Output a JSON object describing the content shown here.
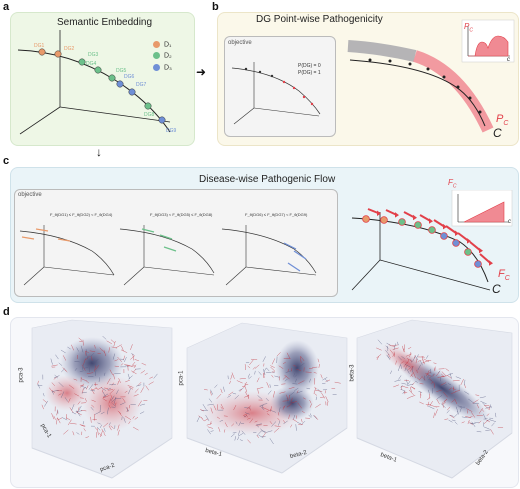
{
  "panel_a": {
    "letter": "a",
    "title": "Semantic Embedding",
    "legend": [
      {
        "label": "D₁",
        "color": "#e89a6b"
      },
      {
        "label": "D₂",
        "color": "#6cc08a"
      },
      {
        "label": "D₃",
        "color": "#6f8fd6"
      }
    ],
    "nodes": [
      {
        "label": "DG1",
        "group": 0
      },
      {
        "label": "DG2",
        "group": 0
      },
      {
        "label": "DG3",
        "group": 1
      },
      {
        "label": "DG4",
        "group": 1
      },
      {
        "label": "DG5",
        "group": 1
      },
      {
        "label": "DG6",
        "group": 2
      },
      {
        "label": "DG7",
        "group": 2
      },
      {
        "label": "DG8",
        "group": 1
      },
      {
        "label": "DG9",
        "group": 2
      }
    ]
  },
  "panel_b": {
    "letter": "b",
    "title": "DG Point-wise Pathogenicity",
    "objective_label": "objective",
    "eq1": "P(DG) = 0",
    "eq2": "P(DG) = 1",
    "curve_label": "C",
    "pc_label": "P",
    "pc_sub": "C",
    "inset_label": "P",
    "inset_sub": "C",
    "inset_axis": "c"
  },
  "panel_c": {
    "letter": "c",
    "title": "Disease-wise Pathogenic Flow",
    "objective_label": "objective",
    "ineq1": "F_θ(DG1) ≤ F_θ(DG2) < F_θ(DG4)",
    "ineq2": "F_θ(DG3) < F_θ(DG5) ≤ F_θ(DG8)",
    "ineq3": "F_θ(DG6) ≤ F_θ(DG7) < F_θ(DG9)",
    "curve_label": "C",
    "fc_label": "F",
    "fc_sub": "C",
    "inset_label": "F",
    "inset_sub": "C",
    "inset_axis": "c"
  },
  "panel_d": {
    "letter": "d",
    "plots": [
      {
        "axis_v": "pca-3",
        "axis_l": "pca-1",
        "axis_r": "pca-2"
      },
      {
        "axis_v": "pca-1",
        "axis_l": "beta-1",
        "axis_r": "beta-2"
      },
      {
        "axis_v": "beta-3",
        "axis_l": "beta-1",
        "axis_r": "beta-2"
      }
    ]
  },
  "arrow_right": "➜",
  "arrow_down": "↓",
  "colors": {
    "green_bg": "#eef7e6",
    "yellow_bg": "#fbf8ea",
    "blue_bg": "#eaf4f8",
    "obj_bg": "#f4f4f4",
    "red": "#e2404a",
    "pink": "#f08a93",
    "gray_band": "#a8a8ad"
  }
}
